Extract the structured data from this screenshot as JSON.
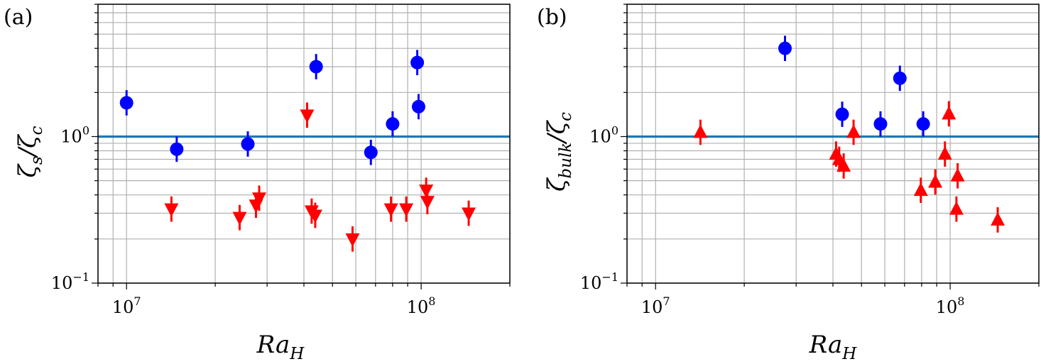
{
  "colors": {
    "blue": "#0000ff",
    "red": "#ff0000",
    "reference": "#1f77b4",
    "grid": "#b0b0b0"
  },
  "chart_data": [
    {
      "type": "scatter",
      "panel": "(a)",
      "xlabel": {
        "base": "Ra",
        "sub": "H"
      },
      "ylabel": {
        "base": "ζ",
        "sub": "s",
        "den_base": "ζ",
        "den_sub": "c"
      },
      "xscale": "log",
      "yscale": "log",
      "xlim": [
        8000000,
        200000000
      ],
      "ylim": [
        0.1,
        8
      ],
      "x_ticks": [
        {
          "base": "10",
          "exp": "7"
        },
        {
          "base": "10",
          "exp": "8"
        }
      ],
      "y_ticks": [
        {
          "base": "10",
          "exp": "−1"
        },
        {
          "base": "10",
          "exp": "0"
        }
      ],
      "grid": true,
      "reference_line": 1,
      "series": [
        {
          "marker": "circle",
          "color": "blue",
          "points": [
            {
              "x": 10000000,
              "y": 1.7
            },
            {
              "x": 14800000,
              "y": 0.82
            },
            {
              "x": 25800000,
              "y": 0.89
            },
            {
              "x": 44000000,
              "y": 3.0
            },
            {
              "x": 67500000,
              "y": 0.78
            },
            {
              "x": 80000000,
              "y": 1.22
            },
            {
              "x": 97000000,
              "y": 3.2
            },
            {
              "x": 98000000,
              "y": 1.6
            }
          ]
        },
        {
          "marker": "triangle-down",
          "color": "red",
          "points": [
            {
              "x": 14200000,
              "y": 0.32
            },
            {
              "x": 24200000,
              "y": 0.28
            },
            {
              "x": 27500000,
              "y": 0.34
            },
            {
              "x": 28200000,
              "y": 0.38
            },
            {
              "x": 41000000,
              "y": 1.4
            },
            {
              "x": 42500000,
              "y": 0.31
            },
            {
              "x": 43700000,
              "y": 0.29
            },
            {
              "x": 58500000,
              "y": 0.2
            },
            {
              "x": 79000000,
              "y": 0.32
            },
            {
              "x": 89000000,
              "y": 0.32
            },
            {
              "x": 104000000,
              "y": 0.43
            },
            {
              "x": 105000000,
              "y": 0.36
            },
            {
              "x": 145000000,
              "y": 0.3
            }
          ]
        }
      ]
    },
    {
      "type": "scatter",
      "panel": "(b)",
      "xlabel": {
        "base": "Ra",
        "sub": "H"
      },
      "ylabel": {
        "base": "ζ",
        "sub": "bulk",
        "den_base": "ζ",
        "den_sub": "c"
      },
      "xscale": "log",
      "yscale": "log",
      "xlim": [
        8000000,
        200000000
      ],
      "ylim": [
        0.1,
        8
      ],
      "x_ticks": [
        {
          "base": "10",
          "exp": "7"
        },
        {
          "base": "10",
          "exp": "8"
        }
      ],
      "y_ticks": [
        {
          "base": "10",
          "exp": "−1"
        },
        {
          "base": "10",
          "exp": "0"
        }
      ],
      "grid": true,
      "reference_line": 1,
      "series": [
        {
          "marker": "circle",
          "color": "blue",
          "points": [
            {
              "x": 27500000,
              "y": 4.0
            },
            {
              "x": 43000000,
              "y": 1.42
            },
            {
              "x": 58000000,
              "y": 1.22
            },
            {
              "x": 67500000,
              "y": 2.5
            },
            {
              "x": 81000000,
              "y": 1.22
            }
          ]
        },
        {
          "marker": "triangle-up",
          "color": "red",
          "points": [
            {
              "x": 14200000,
              "y": 1.07
            },
            {
              "x": 41000000,
              "y": 0.76
            },
            {
              "x": 42000000,
              "y": 0.7
            },
            {
              "x": 43500000,
              "y": 0.63
            },
            {
              "x": 47000000,
              "y": 1.07
            },
            {
              "x": 79500000,
              "y": 0.43
            },
            {
              "x": 89000000,
              "y": 0.49
            },
            {
              "x": 96000000,
              "y": 0.76
            },
            {
              "x": 99000000,
              "y": 1.43
            },
            {
              "x": 106000000,
              "y": 0.54
            },
            {
              "x": 105000000,
              "y": 0.32
            },
            {
              "x": 145000000,
              "y": 0.27
            }
          ]
        }
      ]
    }
  ]
}
